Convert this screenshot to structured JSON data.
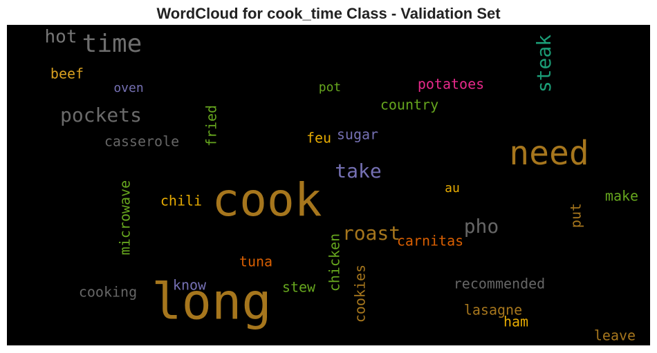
{
  "chart_data": {
    "type": "wordcloud",
    "title": "WordCloud for cook_time Class - Validation Set",
    "background": "#000000",
    "words": [
      {
        "text": "hot",
        "color": "#777777"
      },
      {
        "text": "time",
        "color": "#6e6e6e"
      },
      {
        "text": "beef",
        "color": "#d9a020"
      },
      {
        "text": "oven",
        "color": "#7570b3"
      },
      {
        "text": "pockets",
        "color": "#6b6b6b"
      },
      {
        "text": "casserole",
        "color": "#666666"
      },
      {
        "text": "fried",
        "color": "#66a61e"
      },
      {
        "text": "steak",
        "color": "#1b9e77"
      },
      {
        "text": "pot",
        "color": "#66a61e"
      },
      {
        "text": "potatoes",
        "color": "#e7298a"
      },
      {
        "text": "country",
        "color": "#66a61e"
      },
      {
        "text": "feu",
        "color": "#e6ab02"
      },
      {
        "text": "sugar",
        "color": "#7570b3"
      },
      {
        "text": "need",
        "color": "#a6761d"
      },
      {
        "text": "take",
        "color": "#7570b3"
      },
      {
        "text": "cook",
        "color": "#a6761d"
      },
      {
        "text": "chili",
        "color": "#e6ab02"
      },
      {
        "text": "au",
        "color": "#e6ab02"
      },
      {
        "text": "make",
        "color": "#66a61e"
      },
      {
        "text": "put",
        "color": "#a6761d"
      },
      {
        "text": "microwave",
        "color": "#66a61e"
      },
      {
        "text": "pho",
        "color": "#666666"
      },
      {
        "text": "roast",
        "color": "#a6761d"
      },
      {
        "text": "carnitas",
        "color": "#d95f02"
      },
      {
        "text": "chicken",
        "color": "#66a61e"
      },
      {
        "text": "tuna",
        "color": "#d95f02"
      },
      {
        "text": "cookies",
        "color": "#a6761d"
      },
      {
        "text": "recommended",
        "color": "#666666"
      },
      {
        "text": "know",
        "color": "#7570b3"
      },
      {
        "text": "stew",
        "color": "#66a61e"
      },
      {
        "text": "cooking",
        "color": "#666666"
      },
      {
        "text": "long",
        "color": "#a6761d"
      },
      {
        "text": "lasagne",
        "color": "#a6761d"
      },
      {
        "text": "ham",
        "color": "#e6ab02"
      },
      {
        "text": "leave",
        "color": "#a6761d"
      }
    ]
  }
}
